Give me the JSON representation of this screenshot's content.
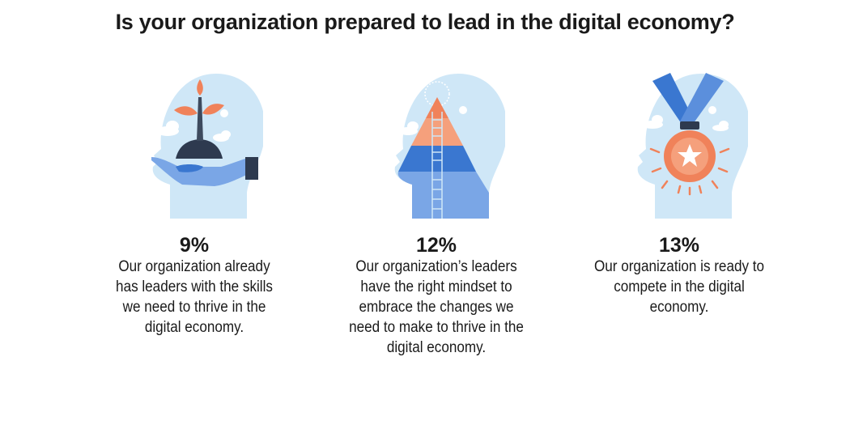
{
  "title": "Is your organization prepared to lead in the digital economy?",
  "items": [
    {
      "percent": "9%",
      "description": "Our organization already has leaders with the skills we need to thrive in the digital economy.",
      "icon": "hand-holding-plant-icon"
    },
    {
      "percent": "12%",
      "description": "Our organization’s leaders have the right mindset to embrace the changes we need to make to thrive in the digital economy.",
      "icon": "pyramid-ladder-icon"
    },
    {
      "percent": "13%",
      "description": "Our organization is ready to compete in the digital economy.",
      "icon": "medal-icon"
    }
  ],
  "colors": {
    "head": "#cfe7f7",
    "orange": "#f0825a",
    "blue": "#3a77d0",
    "light_blue": "#7aa6e6",
    "dark": "#2e3a4f"
  }
}
